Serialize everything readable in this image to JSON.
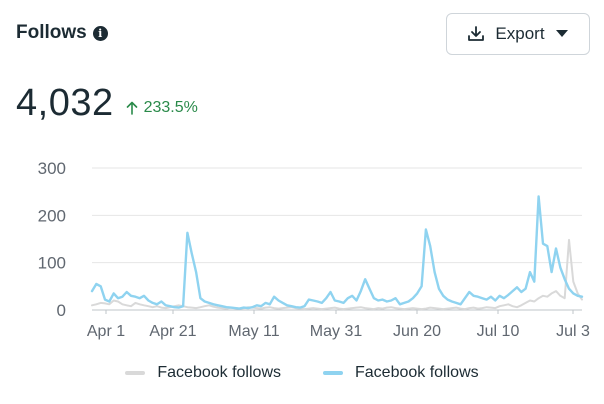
{
  "header": {
    "title": "Follows",
    "info_icon": "info-icon",
    "export_label": "Export",
    "export_icon": "download-icon",
    "dropdown_icon": "caret-down-icon"
  },
  "metric": {
    "value": "4,032",
    "delta": "233.5%",
    "delta_icon": "arrow-up-icon",
    "delta_color": "#2a8a4a"
  },
  "colors": {
    "series_current": "#8fd3f0",
    "series_previous": "#d9d9d9",
    "grid": "#e6e6e6",
    "axis": "#606770"
  },
  "chart_data": {
    "type": "line",
    "title": "",
    "xlabel": "",
    "ylabel": "",
    "ylim": [
      0,
      300
    ],
    "yticks": [
      "300",
      "200",
      "100",
      "0"
    ],
    "xtick_labels": [
      "Apr 1",
      "Apr 21",
      "May 11",
      "May 31",
      "Jun 20",
      "Jul 10",
      "Jul 3"
    ],
    "grid": true,
    "legend": "bottom-center",
    "series": [
      {
        "name": "Facebook follows",
        "color": "#d9d9d9",
        "values": [
          10,
          12,
          15,
          14,
          12,
          20,
          18,
          12,
          10,
          8,
          15,
          12,
          10,
          8,
          6,
          8,
          5,
          4,
          6,
          8,
          10,
          8,
          6,
          5,
          4,
          6,
          8,
          10,
          7,
          5,
          4,
          3,
          5,
          4,
          3,
          4,
          6,
          5,
          4,
          3,
          5,
          6,
          4,
          3,
          4,
          5,
          6,
          4,
          3,
          2,
          3,
          4,
          3,
          2,
          3,
          4,
          5,
          3,
          2,
          3,
          4,
          5,
          6,
          4,
          3,
          2,
          4,
          3,
          5,
          6,
          4,
          3,
          2,
          3,
          4,
          3,
          2,
          3,
          5,
          4,
          3,
          2,
          3,
          4,
          5,
          3,
          2,
          4,
          5,
          3,
          4,
          6,
          5,
          4,
          8,
          10,
          12,
          8,
          6,
          10,
          15,
          20,
          18,
          25,
          30,
          28,
          35,
          40,
          30,
          25,
          148,
          60,
          35,
          22
        ]
      },
      {
        "name": "Facebook follows",
        "color": "#8fd3f0",
        "values": [
          40,
          55,
          50,
          22,
          18,
          35,
          25,
          28,
          38,
          30,
          28,
          25,
          30,
          20,
          15,
          12,
          18,
          10,
          8,
          6,
          5,
          8,
          163,
          120,
          80,
          25,
          18,
          15,
          12,
          10,
          8,
          6,
          5,
          4,
          3,
          5,
          4,
          6,
          10,
          8,
          15,
          12,
          28,
          20,
          15,
          10,
          8,
          6,
          5,
          8,
          22,
          20,
          18,
          15,
          25,
          38,
          20,
          18,
          15,
          25,
          30,
          20,
          40,
          65,
          45,
          25,
          20,
          22,
          18,
          20,
          25,
          12,
          15,
          18,
          25,
          35,
          50,
          170,
          135,
          80,
          45,
          30,
          22,
          18,
          15,
          12,
          25,
          38,
          30,
          28,
          25,
          22,
          28,
          20,
          30,
          25,
          32,
          40,
          48,
          38,
          45,
          80,
          60,
          240,
          140,
          135,
          80,
          130,
          90,
          65,
          45,
          35,
          30,
          28
        ]
      }
    ]
  }
}
